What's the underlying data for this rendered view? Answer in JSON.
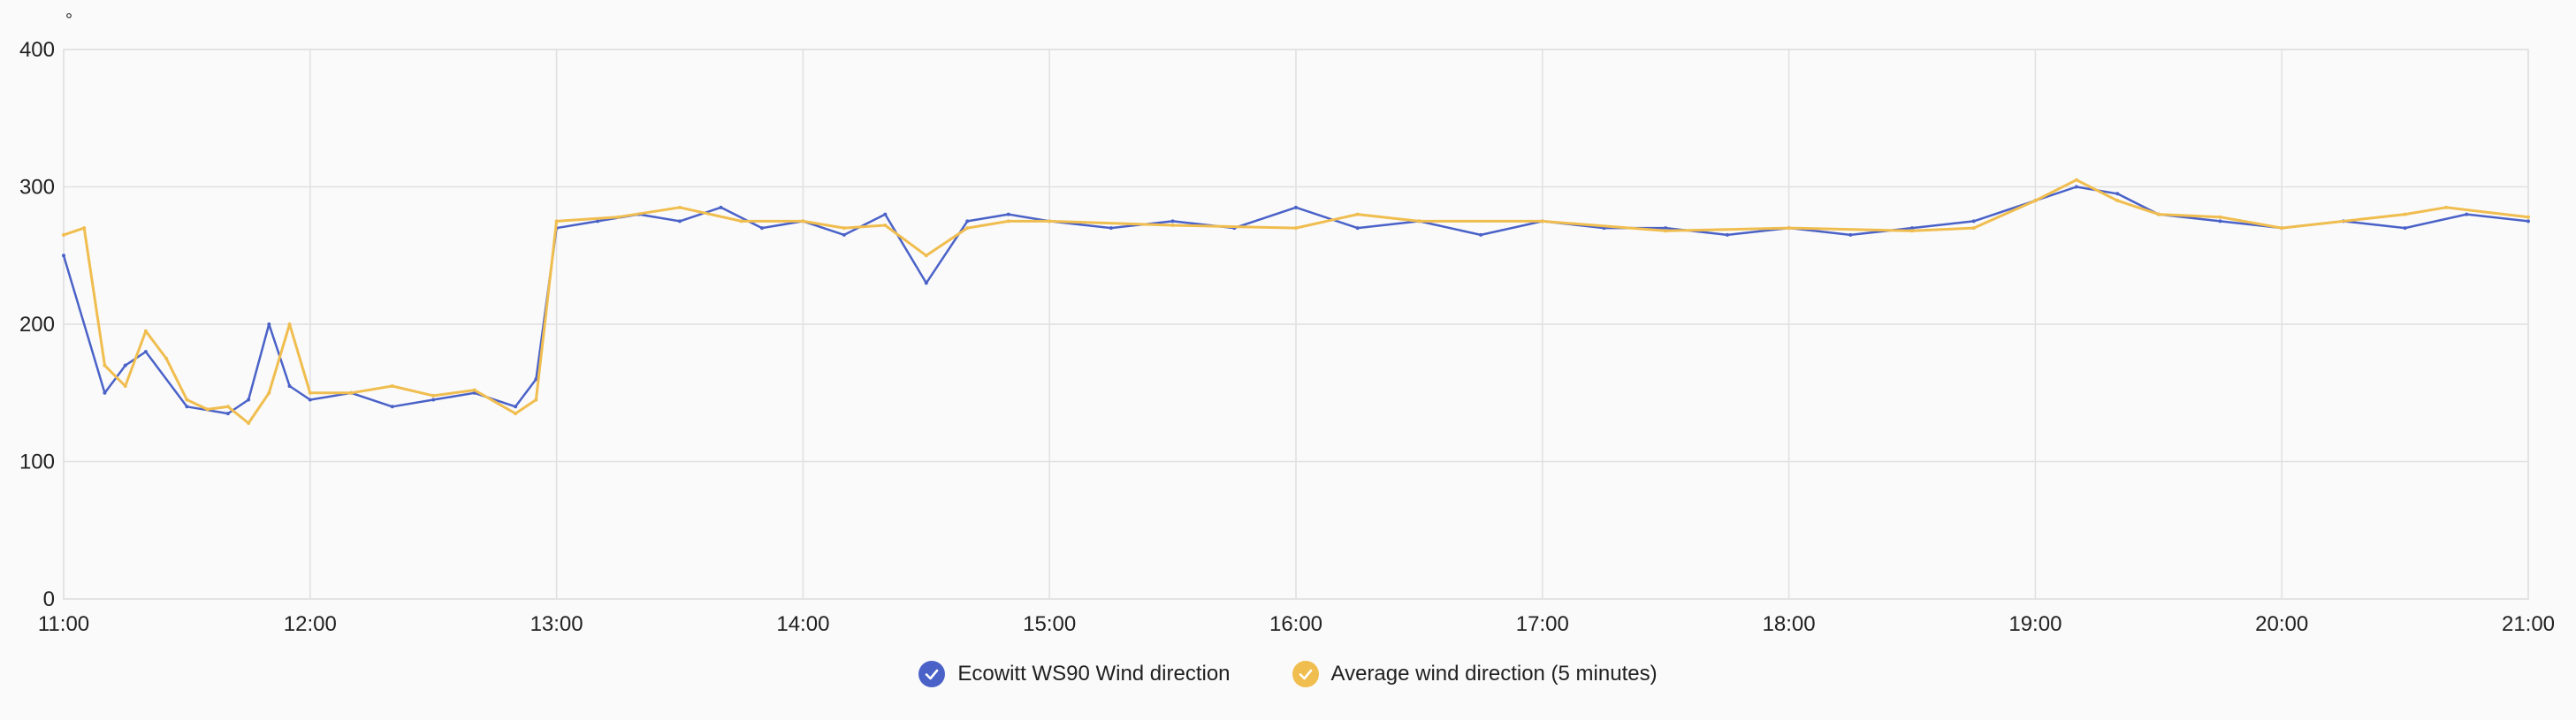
{
  "chart_data": {
    "type": "line",
    "yunit": "°",
    "ylim": [
      0,
      400
    ],
    "yticks": [
      0,
      100,
      200,
      300,
      400
    ],
    "xlim": [
      "11:00",
      "21:00"
    ],
    "xticks": [
      "11:00",
      "12:00",
      "13:00",
      "14:00",
      "15:00",
      "16:00",
      "17:00",
      "18:00",
      "19:00",
      "20:00",
      "21:00"
    ],
    "grid": true,
    "legend_position": "bottom-center",
    "series": [
      {
        "name": "Ecowitt WS90 Wind direction",
        "color": "#4a62c8",
        "x": [
          "11:00",
          "11:10",
          "11:15",
          "11:20",
          "11:30",
          "11:40",
          "11:45",
          "11:50",
          "11:55",
          "12:00",
          "12:10",
          "12:20",
          "12:30",
          "12:40",
          "12:50",
          "12:55",
          "13:00",
          "13:10",
          "13:20",
          "13:30",
          "13:40",
          "13:50",
          "14:00",
          "14:10",
          "14:20",
          "14:30",
          "14:40",
          "14:50",
          "15:00",
          "15:15",
          "15:30",
          "15:45",
          "16:00",
          "16:15",
          "16:30",
          "16:45",
          "17:00",
          "17:15",
          "17:30",
          "17:45",
          "18:00",
          "18:15",
          "18:30",
          "18:45",
          "19:00",
          "19:10",
          "19:20",
          "19:30",
          "19:45",
          "20:00",
          "20:15",
          "20:30",
          "20:45",
          "21:00"
        ],
        "values": [
          250,
          150,
          170,
          180,
          140,
          135,
          145,
          200,
          155,
          145,
          150,
          140,
          145,
          150,
          140,
          160,
          270,
          275,
          280,
          275,
          285,
          270,
          275,
          265,
          280,
          230,
          275,
          280,
          275,
          270,
          275,
          270,
          285,
          270,
          275,
          265,
          275,
          270,
          270,
          265,
          270,
          265,
          270,
          275,
          290,
          300,
          295,
          280,
          275,
          270,
          275,
          270,
          280,
          275
        ]
      },
      {
        "name": "Average wind direction (5 minutes)",
        "color": "#f0bd4f",
        "x": [
          "11:00",
          "11:05",
          "11:10",
          "11:15",
          "11:20",
          "11:25",
          "11:30",
          "11:35",
          "11:40",
          "11:45",
          "11:50",
          "11:55",
          "12:00",
          "12:10",
          "12:20",
          "12:30",
          "12:40",
          "12:50",
          "12:55",
          "13:00",
          "13:15",
          "13:30",
          "13:45",
          "14:00",
          "14:10",
          "14:20",
          "14:30",
          "14:40",
          "14:50",
          "15:00",
          "15:30",
          "16:00",
          "16:15",
          "16:30",
          "17:00",
          "17:30",
          "18:00",
          "18:30",
          "18:45",
          "19:00",
          "19:10",
          "19:20",
          "19:30",
          "19:45",
          "20:00",
          "20:30",
          "20:40",
          "21:00"
        ],
        "values": [
          265,
          270,
          170,
          155,
          195,
          175,
          145,
          138,
          140,
          128,
          150,
          200,
          150,
          150,
          155,
          148,
          152,
          135,
          145,
          275,
          278,
          285,
          275,
          275,
          270,
          272,
          250,
          270,
          275,
          275,
          272,
          270,
          280,
          275,
          275,
          268,
          270,
          268,
          270,
          290,
          305,
          290,
          280,
          278,
          270,
          280,
          285,
          278
        ]
      }
    ]
  },
  "legend": {
    "items": [
      {
        "label": "Ecowitt WS90 Wind direction",
        "color": "#4a62c8"
      },
      {
        "label": "Average wind direction (5 minutes)",
        "color": "#f0bd4f"
      }
    ]
  }
}
